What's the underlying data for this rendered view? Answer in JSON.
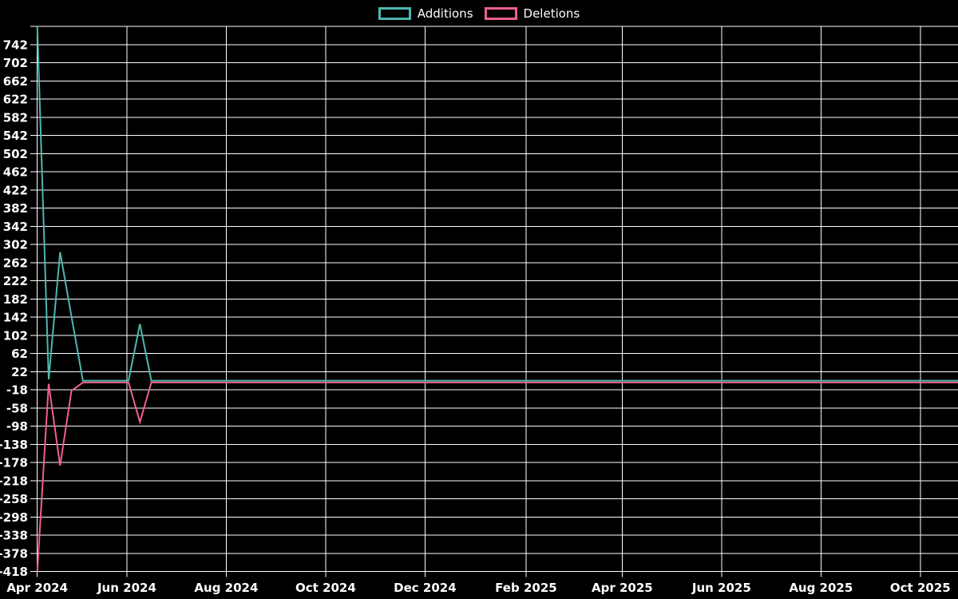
{
  "chart": {
    "background_color": "#000000",
    "grid_color": "#ffffff",
    "text_color": "#ffffff"
  },
  "legend": {
    "items": [
      {
        "label": "Additions",
        "color": "#4db8ae"
      },
      {
        "label": "Deletions",
        "color": "#f1608d"
      }
    ]
  },
  "chart_data": {
    "type": "line",
    "title": "",
    "legend_position": "top-center",
    "grid": true,
    "x_axis": {
      "ticks": [
        {
          "date": "2024-04-07",
          "label": "Apr 2024"
        },
        {
          "date": "2024-06-01",
          "label": "Jun 2024"
        },
        {
          "date": "2024-08-01",
          "label": "Aug 2024"
        },
        {
          "date": "2024-10-01",
          "label": "Oct 2024"
        },
        {
          "date": "2024-12-01",
          "label": "Dec 2024"
        },
        {
          "date": "2025-02-01",
          "label": "Feb 2025"
        },
        {
          "date": "2025-04-01",
          "label": "Apr 2025"
        },
        {
          "date": "2025-06-01",
          "label": "Jun 2025"
        },
        {
          "date": "2025-08-01",
          "label": "Aug 2025"
        },
        {
          "date": "2025-10-01",
          "label": "Oct 2025"
        }
      ]
    },
    "y_axis": {
      "min": -418,
      "max": 782,
      "step": 40,
      "labels": [
        "742",
        "702",
        "662",
        "622",
        "582",
        "542",
        "502",
        "462",
        "422",
        "382",
        "342",
        "302",
        "262",
        "222",
        "182",
        "142",
        "102",
        "62",
        "22",
        "-18",
        "-58",
        "-98",
        "-138",
        "-178",
        "-218",
        "-258",
        "-298",
        "-338",
        "-378",
        "-418"
      ]
    },
    "series": [
      {
        "name": "Additions",
        "color": "#4db8ae",
        "points": [
          {
            "date": "2024-04-07",
            "value": 782
          },
          {
            "date": "2024-04-14",
            "value": 5
          },
          {
            "date": "2024-04-21",
            "value": 285
          },
          {
            "date": "2024-04-28",
            "value": 143
          },
          {
            "date": "2024-05-05",
            "value": 2
          },
          {
            "date": "2024-06-02",
            "value": 2
          },
          {
            "date": "2024-06-09",
            "value": 127
          },
          {
            "date": "2024-06-16",
            "value": 2
          },
          {
            "date": "2025-10-26",
            "value": 2
          }
        ]
      },
      {
        "name": "Deletions",
        "color": "#f1608d",
        "points": [
          {
            "date": "2024-04-07",
            "value": -418
          },
          {
            "date": "2024-04-14",
            "value": -5
          },
          {
            "date": "2024-04-21",
            "value": -185
          },
          {
            "date": "2024-04-28",
            "value": -20
          },
          {
            "date": "2024-05-05",
            "value": -2
          },
          {
            "date": "2024-06-02",
            "value": -2
          },
          {
            "date": "2024-06-09",
            "value": -89
          },
          {
            "date": "2024-06-16",
            "value": -2
          },
          {
            "date": "2025-10-26",
            "value": -2
          }
        ]
      }
    ]
  }
}
